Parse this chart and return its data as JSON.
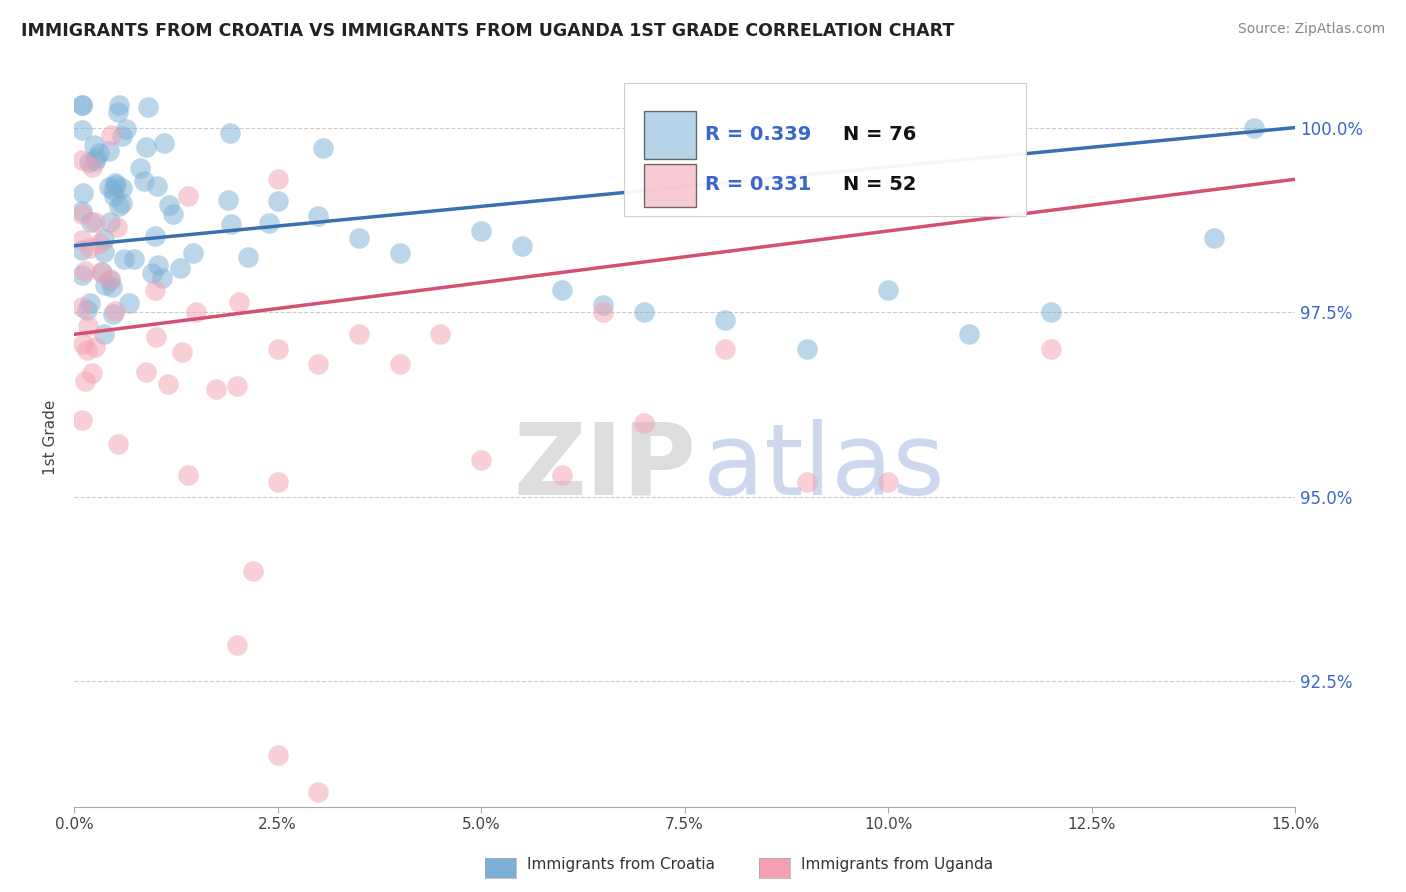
{
  "title": "IMMIGRANTS FROM CROATIA VS IMMIGRANTS FROM UGANDA 1ST GRADE CORRELATION CHART",
  "source": "Source: ZipAtlas.com",
  "ylabel": "1st Grade",
  "xlim": [
    0.0,
    0.15
  ],
  "ylim": [
    0.908,
    1.008
  ],
  "xtick_labels": [
    "0.0%",
    "2.5%",
    "5.0%",
    "7.5%",
    "10.0%",
    "12.5%",
    "15.0%"
  ],
  "xtick_vals": [
    0.0,
    0.025,
    0.05,
    0.075,
    0.1,
    0.125,
    0.15
  ],
  "ytick_labels": [
    "92.5%",
    "95.0%",
    "97.5%",
    "100.0%"
  ],
  "ytick_vals": [
    0.925,
    0.95,
    0.975,
    1.0
  ],
  "croatia_color": "#7bafd4",
  "uganda_color": "#f4a0b0",
  "trendline_croatia_color": "#3a6fb0",
  "trendline_uganda_color": "#d45070",
  "R_croatia": 0.339,
  "N_croatia": 76,
  "R_uganda": 0.331,
  "N_uganda": 52,
  "legend_label_croatia": "Immigrants from Croatia",
  "legend_label_uganda": "Immigrants from Uganda",
  "watermark_zip": "ZIP",
  "watermark_atlas": "atlas",
  "cro_trend_x0": 0.0,
  "cro_trend_y0": 0.984,
  "cro_trend_x1": 0.15,
  "cro_trend_y1": 1.0,
  "uga_trend_x0": 0.0,
  "uga_trend_y0": 0.972,
  "uga_trend_x1": 0.15,
  "uga_trend_y1": 0.993
}
